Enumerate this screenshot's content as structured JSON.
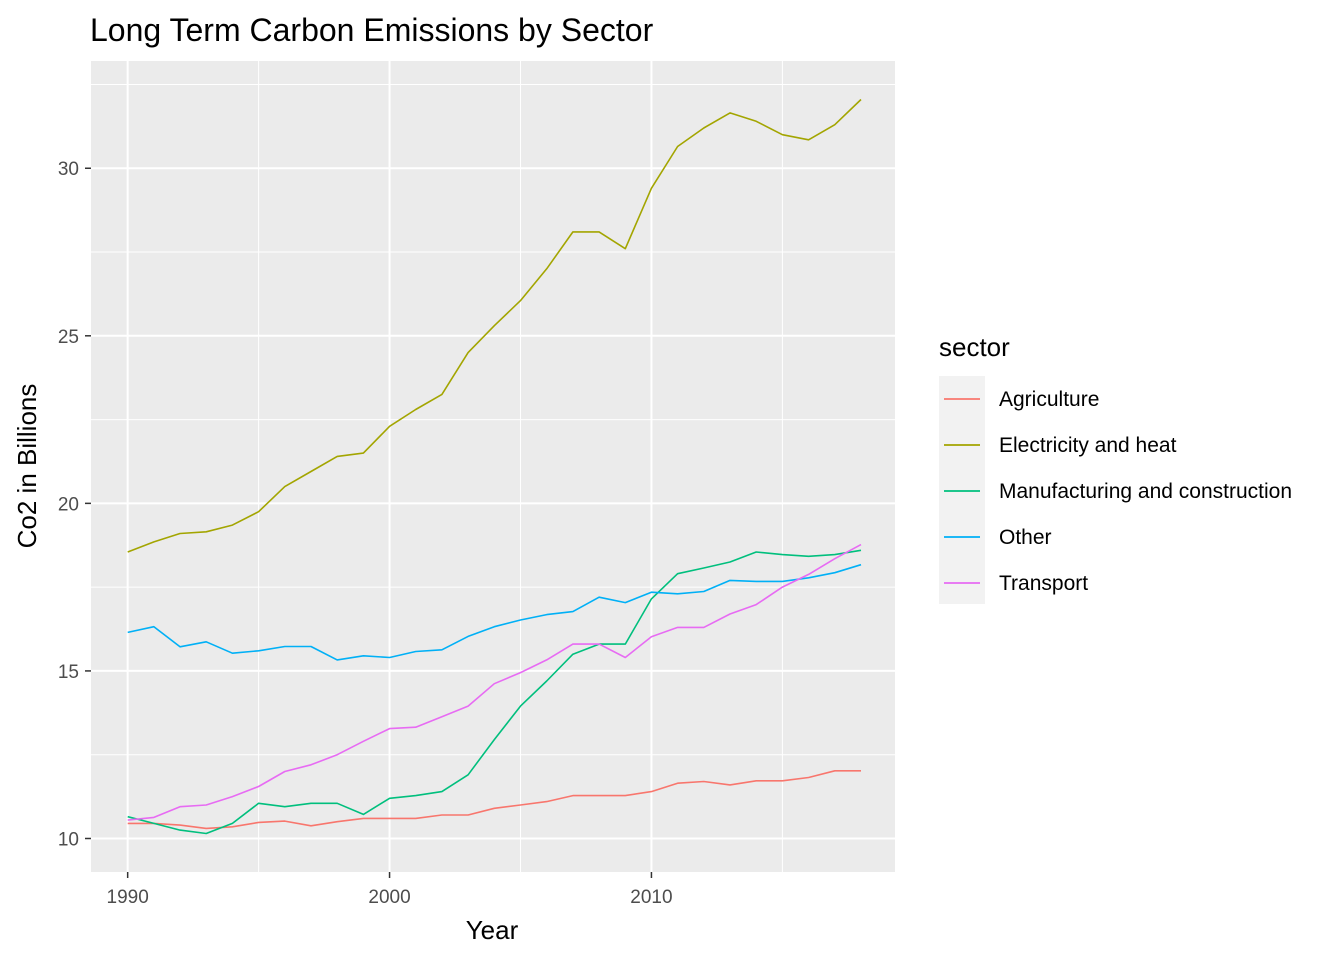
{
  "chart_data": {
    "type": "line",
    "title": "Long Term Carbon Emissions by Sector",
    "xlabel": "Year",
    "ylabel": "Co2 in Billions",
    "xlim": [
      1988.6,
      2019.3
    ],
    "ylim": [
      9.0,
      33.2
    ],
    "xticks": [
      1990,
      2000,
      2010
    ],
    "yticks": [
      10,
      15,
      20,
      25,
      30
    ],
    "xminor": [
      1995,
      2005,
      2015
    ],
    "yminor": [
      12.5,
      17.5,
      22.5,
      27.5,
      32.5
    ],
    "grid": true,
    "legend": {
      "title": "sector",
      "position": "right"
    },
    "x": [
      1990,
      1991,
      1992,
      1993,
      1994,
      1995,
      1996,
      1997,
      1998,
      1999,
      2000,
      2001,
      2002,
      2003,
      2004,
      2005,
      2006,
      2007,
      2008,
      2009,
      2010,
      2011,
      2012,
      2013,
      2014,
      2015,
      2016,
      2017,
      2018
    ],
    "series": [
      {
        "name": "Agriculture",
        "color": "#F8766D",
        "values": [
          10.45,
          10.45,
          10.4,
          10.3,
          10.35,
          10.48,
          10.52,
          10.38,
          10.5,
          10.6,
          10.6,
          10.6,
          10.7,
          10.7,
          10.9,
          11.0,
          11.1,
          11.28,
          11.28,
          11.28,
          11.4,
          11.65,
          11.7,
          11.6,
          11.72,
          11.72,
          11.82,
          12.02,
          12.02
        ]
      },
      {
        "name": "Electricity and heat",
        "color": "#A3A500",
        "values": [
          18.55,
          18.85,
          19.1,
          19.15,
          19.35,
          19.75,
          20.5,
          20.95,
          21.4,
          21.5,
          22.3,
          22.8,
          23.25,
          24.5,
          25.3,
          26.05,
          27.0,
          28.1,
          28.1,
          27.6,
          29.4,
          30.65,
          31.2,
          31.65,
          31.4,
          31.0,
          30.85,
          31.3,
          32.05
        ]
      },
      {
        "name": "Manufacturing and construction",
        "color": "#00BF7D",
        "values": [
          10.65,
          10.45,
          10.25,
          10.15,
          10.45,
          11.05,
          10.95,
          11.05,
          11.05,
          10.72,
          11.2,
          11.28,
          11.4,
          11.9,
          12.95,
          13.95,
          14.7,
          15.5,
          15.8,
          15.8,
          17.15,
          17.9,
          18.07,
          18.25,
          18.55,
          18.47,
          18.42,
          18.47,
          18.6
        ]
      },
      {
        "name": "Other",
        "color": "#00B0F6",
        "values": [
          16.15,
          16.32,
          15.72,
          15.87,
          15.53,
          15.6,
          15.73,
          15.73,
          15.33,
          15.45,
          15.4,
          15.58,
          15.63,
          16.03,
          16.32,
          16.52,
          16.68,
          16.77,
          17.2,
          17.04,
          17.35,
          17.3,
          17.37,
          17.7,
          17.67,
          17.67,
          17.78,
          17.93,
          18.17
        ]
      },
      {
        "name": "Transport",
        "color": "#E76BF3",
        "values": [
          10.55,
          10.63,
          10.95,
          11.0,
          11.25,
          11.55,
          12.0,
          12.2,
          12.5,
          12.9,
          13.28,
          13.32,
          13.63,
          13.95,
          14.62,
          14.95,
          15.33,
          15.8,
          15.8,
          15.4,
          16.02,
          16.3,
          16.3,
          16.7,
          16.98,
          17.5,
          17.88,
          18.35,
          18.77
        ]
      }
    ]
  }
}
